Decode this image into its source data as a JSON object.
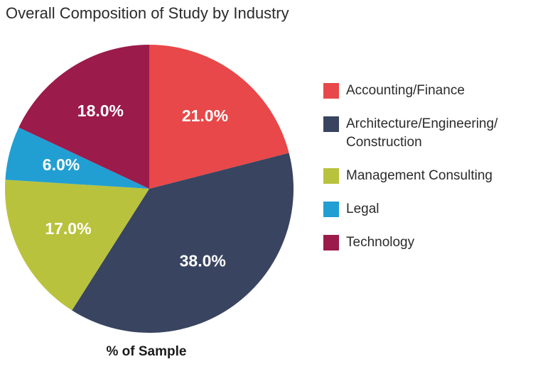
{
  "chart_data": {
    "type": "pie",
    "title": "Overall Composition of Study by Industry",
    "xlabel": "% of Sample",
    "start_angle_deg": 0,
    "direction": "clockwise",
    "legend_position": "right",
    "slices": [
      {
        "name": "Accounting/Finance",
        "value": 21.0,
        "label": "21.0%",
        "color": "#e84849"
      },
      {
        "name": "Architecture/Engineering/ Construction",
        "value": 38.0,
        "label": "38.0%",
        "color": "#394460"
      },
      {
        "name": "Management Consulting",
        "value": 17.0,
        "label": "17.0%",
        "color": "#b9c23c"
      },
      {
        "name": "Legal",
        "value": 6.0,
        "label": "6.0%",
        "color": "#219fd3"
      },
      {
        "name": "Technology",
        "value": 18.0,
        "label": "18.0%",
        "color": "#9b1b4b"
      }
    ]
  }
}
